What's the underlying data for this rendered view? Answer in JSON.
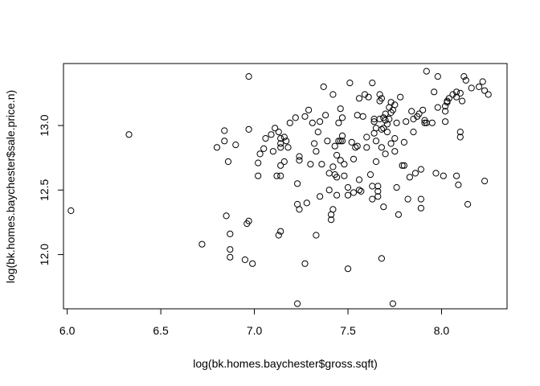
{
  "chart_data": {
    "type": "scatter",
    "xlabel": "log(bk.homes.baychester$gross.sqft)",
    "ylabel": "log(bk.homes.baychester$sale.price.n)",
    "xlim": [
      5.98,
      8.35
    ],
    "ylim": [
      11.58,
      13.48
    ],
    "xticks": [
      6.0,
      6.5,
      7.0,
      7.5,
      8.0
    ],
    "xtick_labels": [
      "6.0",
      "6.5",
      "7.0",
      "7.5",
      "8.0"
    ],
    "yticks": [
      12.0,
      12.5,
      13.0
    ],
    "ytick_labels": [
      "12.0",
      "12.5",
      "13.0"
    ],
    "grid": false,
    "point_color": "#000000",
    "points": [
      [
        6.02,
        12.34
      ],
      [
        6.33,
        12.93
      ],
      [
        6.72,
        12.08
      ],
      [
        6.8,
        12.83
      ],
      [
        6.84,
        12.88
      ],
      [
        6.84,
        12.96
      ],
      [
        6.85,
        12.3
      ],
      [
        6.86,
        12.72
      ],
      [
        6.87,
        12.16
      ],
      [
        6.87,
        12.04
      ],
      [
        6.87,
        11.98
      ],
      [
        6.9,
        12.85
      ],
      [
        6.95,
        11.96
      ],
      [
        6.96,
        12.24
      ],
      [
        6.97,
        12.26
      ],
      [
        6.97,
        12.97
      ],
      [
        6.97,
        13.38
      ],
      [
        6.99,
        11.93
      ],
      [
        7.02,
        12.61
      ],
      [
        7.02,
        12.71
      ],
      [
        7.03,
        12.78
      ],
      [
        7.05,
        12.82
      ],
      [
        7.06,
        12.9
      ],
      [
        7.09,
        12.93
      ],
      [
        7.1,
        12.8
      ],
      [
        7.11,
        12.98
      ],
      [
        7.12,
        12.61
      ],
      [
        7.13,
        12.95
      ],
      [
        7.14,
        12.83
      ],
      [
        7.14,
        12.9
      ],
      [
        7.14,
        12.86
      ],
      [
        7.14,
        12.61
      ],
      [
        7.14,
        12.69
      ],
      [
        7.13,
        12.15
      ],
      [
        7.14,
        12.18
      ],
      [
        7.16,
        12.91
      ],
      [
        7.16,
        12.72
      ],
      [
        7.17,
        12.88
      ],
      [
        7.18,
        12.83
      ],
      [
        7.19,
        13.02
      ],
      [
        7.22,
        13.06
      ],
      [
        7.23,
        11.62
      ],
      [
        7.23,
        12.55
      ],
      [
        7.23,
        12.39
      ],
      [
        7.24,
        12.35
      ],
      [
        7.24,
        12.73
      ],
      [
        7.24,
        12.76
      ],
      [
        7.27,
        13.07
      ],
      [
        7.27,
        11.93
      ],
      [
        7.28,
        12.4
      ],
      [
        7.29,
        13.12
      ],
      [
        7.3,
        12.7
      ],
      [
        7.31,
        13.02
      ],
      [
        7.32,
        12.86
      ],
      [
        7.33,
        12.15
      ],
      [
        7.33,
        12.8
      ],
      [
        7.34,
        12.95
      ],
      [
        7.35,
        13.03
      ],
      [
        7.35,
        12.45
      ],
      [
        7.36,
        12.7
      ],
      [
        7.37,
        13.3
      ],
      [
        7.38,
        13.08
      ],
      [
        7.39,
        12.88
      ],
      [
        7.4,
        12.63
      ],
      [
        7.4,
        12.5
      ],
      [
        7.41,
        12.31
      ],
      [
        7.41,
        12.27
      ],
      [
        7.42,
        12.35
      ],
      [
        7.42,
        12.68
      ],
      [
        7.42,
        13.24
      ],
      [
        7.43,
        12.62
      ],
      [
        7.43,
        12.84
      ],
      [
        7.44,
        12.6
      ],
      [
        7.44,
        12.77
      ],
      [
        7.44,
        12.46
      ],
      [
        7.45,
        13.02
      ],
      [
        7.45,
        12.88
      ],
      [
        7.46,
        13.13
      ],
      [
        7.46,
        12.73
      ],
      [
        7.46,
        12.88
      ],
      [
        7.47,
        12.92
      ],
      [
        7.47,
        12.88
      ],
      [
        7.47,
        13.06
      ],
      [
        7.48,
        12.61
      ],
      [
        7.48,
        12.7
      ],
      [
        7.5,
        12.46
      ],
      [
        7.5,
        12.52
      ],
      [
        7.5,
        11.89
      ],
      [
        7.51,
        13.33
      ],
      [
        7.52,
        12.87
      ],
      [
        7.53,
        12.74
      ],
      [
        7.53,
        12.48
      ],
      [
        7.54,
        12.83
      ],
      [
        7.55,
        12.84
      ],
      [
        7.55,
        13.08
      ],
      [
        7.56,
        12.58
      ],
      [
        7.56,
        12.5
      ],
      [
        7.56,
        13.21
      ],
      [
        7.57,
        12.49
      ],
      [
        7.58,
        13.07
      ],
      [
        7.59,
        13.24
      ],
      [
        7.6,
        12.91
      ],
      [
        7.6,
        12.83
      ],
      [
        7.61,
        13.22
      ],
      [
        7.62,
        12.62
      ],
      [
        7.63,
        13.33
      ],
      [
        7.63,
        12.53
      ],
      [
        7.63,
        12.43
      ],
      [
        7.64,
        13.05
      ],
      [
        7.64,
        13.03
      ],
      [
        7.64,
        12.94
      ],
      [
        7.65,
        12.72
      ],
      [
        7.65,
        12.88
      ],
      [
        7.65,
        12.98
      ],
      [
        7.66,
        12.49
      ],
      [
        7.66,
        12.53
      ],
      [
        7.66,
        12.45
      ],
      [
        7.67,
        13.05
      ],
      [
        7.67,
        13.19
      ],
      [
        7.67,
        13.24
      ],
      [
        7.68,
        13.21
      ],
      [
        7.68,
        12.97
      ],
      [
        7.68,
        12.83
      ],
      [
        7.68,
        11.97
      ],
      [
        7.69,
        12.98
      ],
      [
        7.69,
        12.37
      ],
      [
        7.69,
        13.06
      ],
      [
        7.7,
        13.04
      ],
      [
        7.7,
        12.78
      ],
      [
        7.7,
        13.09
      ],
      [
        7.71,
        13.01
      ],
      [
        7.71,
        12.95
      ],
      [
        7.72,
        13.14
      ],
      [
        7.72,
        13.05
      ],
      [
        7.73,
        12.86
      ],
      [
        7.73,
        13.1
      ],
      [
        7.73,
        13.18
      ],
      [
        7.74,
        11.62
      ],
      [
        7.74,
        13.12
      ],
      [
        7.75,
        13.16
      ],
      [
        7.75,
        12.9
      ],
      [
        7.75,
        12.8
      ],
      [
        7.76,
        13.02
      ],
      [
        7.76,
        12.52
      ],
      [
        7.77,
        12.31
      ],
      [
        7.78,
        13.22
      ],
      [
        7.79,
        12.69
      ],
      [
        7.8,
        12.87
      ],
      [
        7.8,
        12.69
      ],
      [
        7.81,
        13.03
      ],
      [
        7.82,
        12.43
      ],
      [
        7.83,
        12.6
      ],
      [
        7.84,
        13.11
      ],
      [
        7.85,
        12.95
      ],
      [
        7.85,
        13.05
      ],
      [
        7.86,
        12.63
      ],
      [
        7.87,
        13.07
      ],
      [
        7.88,
        13.09
      ],
      [
        7.89,
        12.66
      ],
      [
        7.89,
        12.36
      ],
      [
        7.89,
        12.43
      ],
      [
        7.9,
        13.12
      ],
      [
        7.91,
        13.02
      ],
      [
        7.91,
        13.04
      ],
      [
        7.92,
        13.42
      ],
      [
        7.92,
        13.02
      ],
      [
        7.95,
        13.02
      ],
      [
        7.96,
        13.26
      ],
      [
        7.97,
        12.63
      ],
      [
        7.98,
        13.14
      ],
      [
        7.98,
        13.38
      ],
      [
        8.01,
        12.61
      ],
      [
        8.02,
        13.03
      ],
      [
        8.02,
        13.11
      ],
      [
        8.02,
        13.15
      ],
      [
        8.03,
        13.18
      ],
      [
        8.03,
        13.19
      ],
      [
        8.04,
        13.21
      ],
      [
        8.06,
        13.24
      ],
      [
        8.08,
        12.61
      ],
      [
        8.08,
        13.22
      ],
      [
        8.08,
        13.26
      ],
      [
        8.09,
        12.54
      ],
      [
        8.1,
        12.95
      ],
      [
        8.1,
        12.91
      ],
      [
        8.1,
        13.25
      ],
      [
        8.11,
        13.19
      ],
      [
        8.12,
        13.38
      ],
      [
        8.13,
        13.35
      ],
      [
        8.14,
        12.39
      ],
      [
        8.16,
        13.29
      ],
      [
        8.2,
        13.3
      ],
      [
        8.22,
        13.34
      ],
      [
        8.23,
        12.57
      ],
      [
        8.23,
        13.27
      ],
      [
        8.25,
        13.24
      ]
    ]
  }
}
